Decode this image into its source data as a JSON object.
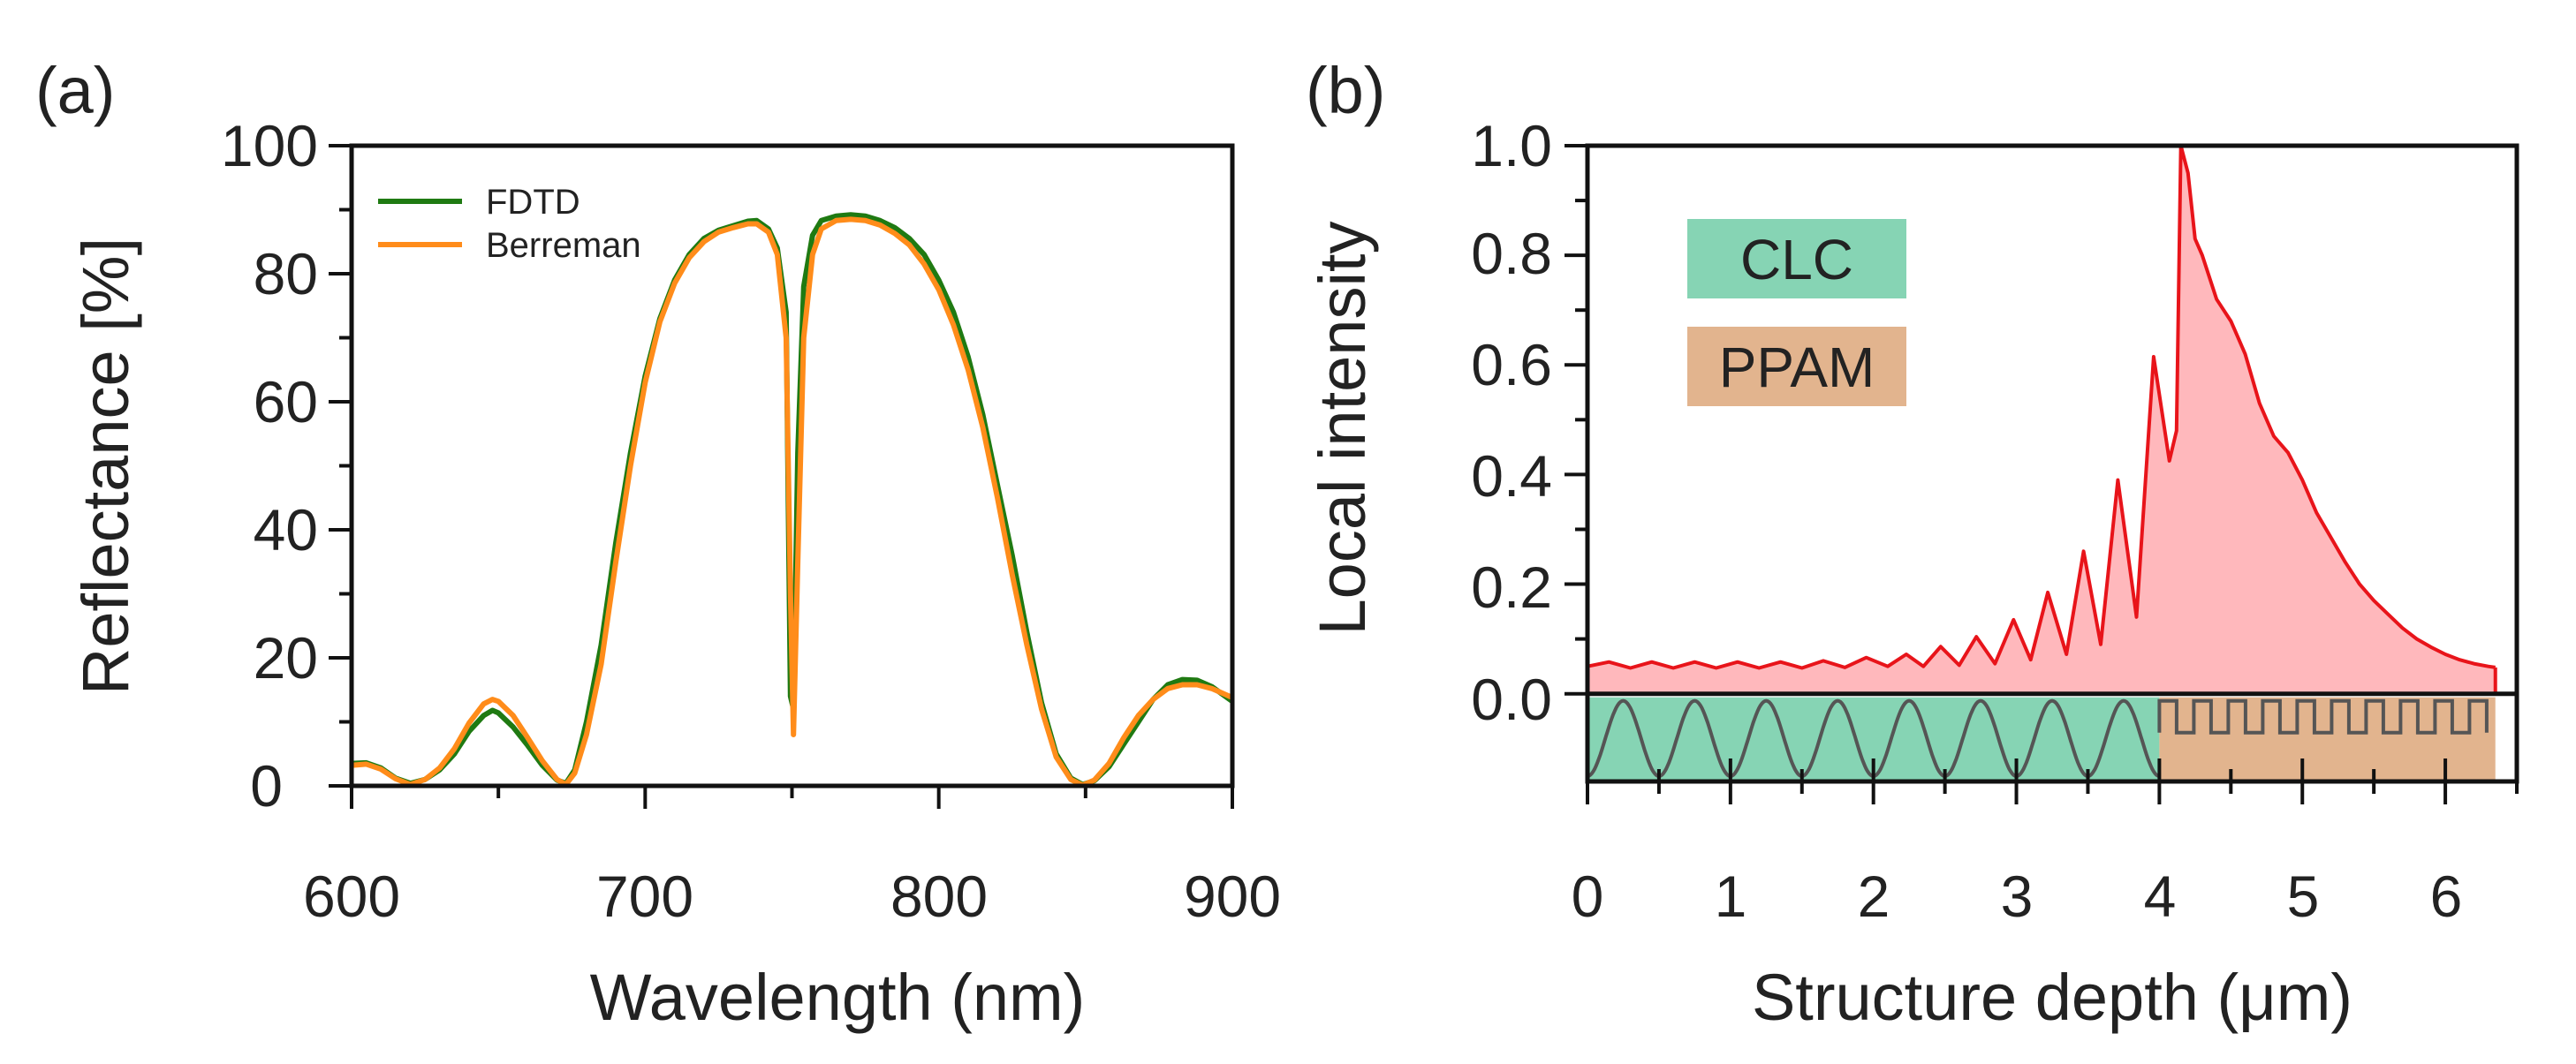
{
  "chart_data": [
    {
      "type": "line",
      "panel_label": "(a)",
      "xlabel": "Wavelength (nm)",
      "ylabel": "Reflectance [%]",
      "xlim": [
        600,
        900
      ],
      "ylim": [
        0,
        100
      ],
      "x_ticks": [
        "600",
        "700",
        "800",
        "900"
      ],
      "y_ticks": [
        "0",
        "20",
        "40",
        "60",
        "80",
        "100"
      ],
      "legend_position": "top-left",
      "series": [
        {
          "name": "FDTD",
          "color": "#1f7a12",
          "points": [
            [
              600,
              3.5
            ],
            [
              605,
              3.6
            ],
            [
              610,
              2.8
            ],
            [
              615,
              1.2
            ],
            [
              620,
              0.4
            ],
            [
              625,
              1.0
            ],
            [
              630,
              2.5
            ],
            [
              635,
              5.0
            ],
            [
              640,
              8.5
            ],
            [
              645,
              11.0
            ],
            [
              648,
              11.8
            ],
            [
              650,
              11.4
            ],
            [
              655,
              9.2
            ],
            [
              660,
              6.3
            ],
            [
              665,
              3.2
            ],
            [
              670,
              0.9
            ],
            [
              673,
              0.4
            ],
            [
              676,
              2.5
            ],
            [
              680,
              10
            ],
            [
              685,
              22
            ],
            [
              690,
              38
            ],
            [
              695,
              52
            ],
            [
              700,
              64
            ],
            [
              705,
              73
            ],
            [
              710,
              79
            ],
            [
              715,
              83
            ],
            [
              720,
              85.5
            ],
            [
              725,
              86.8
            ],
            [
              730,
              87.5
            ],
            [
              735,
              88.2
            ],
            [
              738,
              88.3
            ],
            [
              742,
              87
            ],
            [
              745,
              84
            ],
            [
              748,
              74
            ],
            [
              749.5,
              14
            ],
            [
              750.5,
              12
            ],
            [
              752,
              52
            ],
            [
              754,
              78
            ],
            [
              757,
              86
            ],
            [
              760,
              88.3
            ],
            [
              765,
              89
            ],
            [
              770,
              89.2
            ],
            [
              775,
              89
            ],
            [
              780,
              88.3
            ],
            [
              785,
              87.2
            ],
            [
              790,
              85.5
            ],
            [
              795,
              83
            ],
            [
              800,
              79
            ],
            [
              805,
              74
            ],
            [
              810,
              67
            ],
            [
              815,
              58
            ],
            [
              820,
              47
            ],
            [
              825,
              36
            ],
            [
              830,
              24
            ],
            [
              835,
              13
            ],
            [
              840,
              5
            ],
            [
              845,
              1.2
            ],
            [
              849,
              0.2
            ],
            [
              853,
              0.8
            ],
            [
              858,
              3
            ],
            [
              863,
              6.5
            ],
            [
              868,
              10
            ],
            [
              873,
              13.5
            ],
            [
              878,
              15.8
            ],
            [
              883,
              16.6
            ],
            [
              888,
              16.5
            ],
            [
              893,
              15.5
            ],
            [
              900,
              13.2
            ]
          ]
        },
        {
          "name": "Berreman",
          "color": "#ff8c1a",
          "points": [
            [
              600,
              3.2
            ],
            [
              605,
              3.4
            ],
            [
              610,
              2.6
            ],
            [
              615,
              1.1
            ],
            [
              620,
              0.2
            ],
            [
              625,
              1.0
            ],
            [
              630,
              2.8
            ],
            [
              635,
              5.8
            ],
            [
              640,
              9.8
            ],
            [
              645,
              12.8
            ],
            [
              648,
              13.5
            ],
            [
              650,
              13.2
            ],
            [
              655,
              11.0
            ],
            [
              660,
              7.5
            ],
            [
              665,
              3.9
            ],
            [
              670,
              1.0
            ],
            [
              673,
              0.2
            ],
            [
              676,
              2.0
            ],
            [
              680,
              8
            ],
            [
              685,
              19
            ],
            [
              690,
              35
            ],
            [
              695,
              50
            ],
            [
              700,
              63
            ],
            [
              705,
              72.5
            ],
            [
              710,
              78.5
            ],
            [
              715,
              82.5
            ],
            [
              720,
              85
            ],
            [
              725,
              86.5
            ],
            [
              730,
              87.2
            ],
            [
              735,
              87.8
            ],
            [
              738,
              87.8
            ],
            [
              742,
              86.5
            ],
            [
              745,
              83
            ],
            [
              748,
              70
            ],
            [
              749.5,
              30
            ],
            [
              750.5,
              8
            ],
            [
              752,
              35
            ],
            [
              754,
              70
            ],
            [
              757,
              83
            ],
            [
              760,
              87
            ],
            [
              765,
              88.3
            ],
            [
              770,
              88.5
            ],
            [
              775,
              88.3
            ],
            [
              780,
              87.6
            ],
            [
              785,
              86.3
            ],
            [
              790,
              84.5
            ],
            [
              795,
              81.5
            ],
            [
              800,
              77.5
            ],
            [
              805,
              72
            ],
            [
              810,
              65
            ],
            [
              815,
              56
            ],
            [
              820,
              45
            ],
            [
              825,
              33
            ],
            [
              830,
              22
            ],
            [
              835,
              12
            ],
            [
              840,
              4.5
            ],
            [
              845,
              1
            ],
            [
              849,
              0.1
            ],
            [
              853,
              0.9
            ],
            [
              858,
              3.5
            ],
            [
              863,
              7.5
            ],
            [
              868,
              11
            ],
            [
              873,
              13.5
            ],
            [
              878,
              15.2
            ],
            [
              883,
              15.8
            ],
            [
              888,
              15.8
            ],
            [
              893,
              15.2
            ],
            [
              900,
              13.8
            ]
          ]
        }
      ]
    },
    {
      "type": "area",
      "panel_label": "(b)",
      "xlabel": "Structure depth (μm)",
      "ylabel": "Local intensity",
      "xlim": [
        0,
        6.5
      ],
      "ylim": [
        -0.16,
        1.0
      ],
      "x_ticks": [
        "0",
        "1",
        "2",
        "3",
        "4",
        "5",
        "6"
      ],
      "y_ticks": [
        "0.0",
        "0.2",
        "0.4",
        "0.6",
        "0.8",
        "1.0"
      ],
      "series": [
        {
          "name": "Local intensity",
          "color": "#e8141a",
          "fill": "#ffb8bc",
          "points": [
            [
              0.0,
              0.05
            ],
            [
              0.15,
              0.058
            ],
            [
              0.3,
              0.047
            ],
            [
              0.45,
              0.058
            ],
            [
              0.6,
              0.047
            ],
            [
              0.75,
              0.058
            ],
            [
              0.9,
              0.047
            ],
            [
              1.05,
              0.058
            ],
            [
              1.2,
              0.047
            ],
            [
              1.35,
              0.058
            ],
            [
              1.5,
              0.047
            ],
            [
              1.65,
              0.06
            ],
            [
              1.8,
              0.048
            ],
            [
              1.95,
              0.066
            ],
            [
              2.1,
              0.05
            ],
            [
              2.23,
              0.072
            ],
            [
              2.35,
              0.05
            ],
            [
              2.47,
              0.086
            ],
            [
              2.6,
              0.052
            ],
            [
              2.72,
              0.104
            ],
            [
              2.85,
              0.055
            ],
            [
              2.98,
              0.135
            ],
            [
              3.1,
              0.062
            ],
            [
              3.22,
              0.185
            ],
            [
              3.35,
              0.072
            ],
            [
              3.47,
              0.26
            ],
            [
              3.59,
              0.09
            ],
            [
              3.71,
              0.39
            ],
            [
              3.84,
              0.14
            ],
            [
              3.96,
              0.615
            ],
            [
              4.07,
              0.425
            ],
            [
              4.12,
              0.48
            ],
            [
              4.15,
              1.0
            ],
            [
              4.2,
              0.95
            ],
            [
              4.25,
              0.83
            ],
            [
              4.3,
              0.8
            ],
            [
              4.4,
              0.72
            ],
            [
              4.5,
              0.68
            ],
            [
              4.55,
              0.65
            ],
            [
              4.6,
              0.62
            ],
            [
              4.7,
              0.53
            ],
            [
              4.8,
              0.47
            ],
            [
              4.9,
              0.44
            ],
            [
              5.0,
              0.39
            ],
            [
              5.1,
              0.33
            ],
            [
              5.2,
              0.285
            ],
            [
              5.3,
              0.24
            ],
            [
              5.4,
              0.2
            ],
            [
              5.5,
              0.17
            ],
            [
              5.6,
              0.145
            ],
            [
              5.7,
              0.12
            ],
            [
              5.8,
              0.1
            ],
            [
              5.9,
              0.085
            ],
            [
              6.0,
              0.072
            ],
            [
              6.1,
              0.062
            ],
            [
              6.2,
              0.055
            ],
            [
              6.3,
              0.05
            ],
            [
              6.35,
              0.048
            ]
          ]
        }
      ],
      "layers": [
        {
          "name": "CLC",
          "from": 0,
          "to": 4.0,
          "color": "#86d4b4"
        },
        {
          "name": "PPAM",
          "from": 4.0,
          "to": 6.35,
          "color": "#e2b48e"
        }
      ]
    }
  ]
}
